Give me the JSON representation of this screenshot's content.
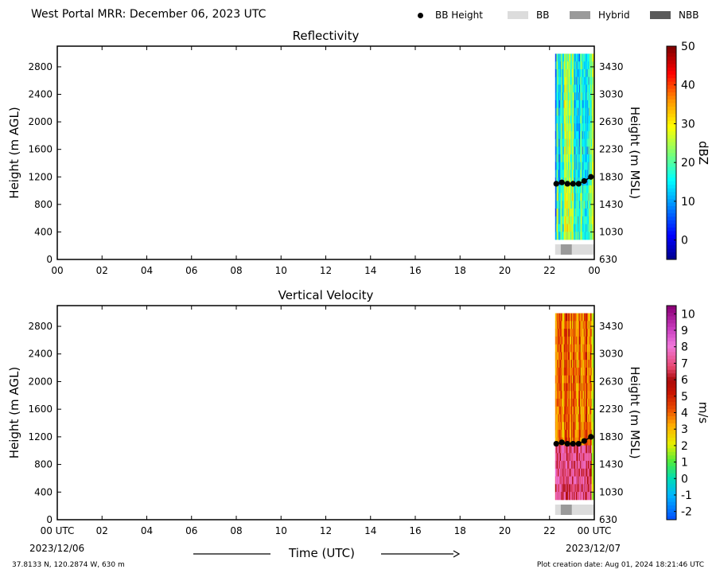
{
  "header": {
    "title": "West Portal MRR:  December 06, 2023 UTC",
    "legend": [
      {
        "label": "BB Height",
        "icon": "dot",
        "color": "#000000"
      },
      {
        "label": "BB",
        "icon": "swatch",
        "color": "#dcdcdc"
      },
      {
        "label": "Hybrid",
        "icon": "swatch",
        "color": "#9a9a9a"
      },
      {
        "label": "NBB",
        "icon": "swatch",
        "color": "#5a5a5a"
      }
    ]
  },
  "footer": {
    "coords": "37.8133 N, 120.2874 W, 630 m",
    "created": "Plot creation date: Aug 01, 2024 18:21:46 UTC",
    "time_label": "Time (UTC)",
    "date_start": "2023/12/06",
    "date_end": "2023/12/07"
  },
  "chart_data": [
    {
      "type": "heatmap",
      "title": "Reflectivity",
      "ylabel": "Height (m AGL)",
      "ylabel_right": "Height (m MSL)",
      "xticks": [
        "00",
        "02",
        "04",
        "06",
        "08",
        "10",
        "12",
        "14",
        "16",
        "18",
        "20",
        "22",
        "00"
      ],
      "yticks": [
        0,
        400,
        800,
        1200,
        1600,
        2000,
        2400,
        2800
      ],
      "yticks_right": [
        630,
        1030,
        1430,
        1830,
        2230,
        2630,
        3030,
        3430
      ],
      "xlim": [
        0,
        24
      ],
      "ylim": [
        0,
        3100
      ],
      "data_start_hour": 22.25,
      "data_end_hour": 24,
      "data_top_m": 2990,
      "data_bottom_m": 290,
      "bb_height": {
        "hours": [
          22.3,
          22.55,
          22.8,
          23.05,
          23.3,
          23.55,
          23.85
        ],
        "heights": [
          1100,
          1120,
          1100,
          1100,
          1100,
          1140,
          1200
        ]
      },
      "bb_class_strip": [
        {
          "from": 22.25,
          "to": 22.5,
          "class": "BB"
        },
        {
          "from": 22.5,
          "to": 23.0,
          "class": "Hybrid"
        },
        {
          "from": 23.0,
          "to": 24.0,
          "class": "BB"
        }
      ],
      "colorbar": {
        "label": "dBZ",
        "ticks": [
          0,
          10,
          20,
          30,
          40,
          50
        ],
        "min": -5,
        "max": 50
      }
    },
    {
      "type": "heatmap",
      "title": "Vertical Velocity",
      "ylabel": "Height (m AGL)",
      "ylabel_right": "Height (m MSL)",
      "xticks": [
        "00 UTC",
        "02",
        "04",
        "06",
        "08",
        "10",
        "12",
        "14",
        "16",
        "18",
        "20",
        "22",
        "00 UTC"
      ],
      "yticks": [
        0,
        400,
        800,
        1200,
        1600,
        2000,
        2400,
        2800
      ],
      "yticks_right": [
        630,
        1030,
        1430,
        1830,
        2230,
        2630,
        3030,
        3430
      ],
      "xlim": [
        0,
        24
      ],
      "ylim": [
        0,
        3100
      ],
      "data_start_hour": 22.25,
      "data_end_hour": 24,
      "data_top_m": 2990,
      "data_bottom_m": 290,
      "bb_height": {
        "hours": [
          22.3,
          22.55,
          22.8,
          23.05,
          23.3,
          23.55,
          23.85
        ],
        "heights": [
          1100,
          1120,
          1100,
          1100,
          1100,
          1140,
          1200
        ]
      },
      "bb_class_strip": [
        {
          "from": 22.25,
          "to": 22.5,
          "class": "BB"
        },
        {
          "from": 22.5,
          "to": 23.0,
          "class": "Hybrid"
        },
        {
          "from": 23.0,
          "to": 24.0,
          "class": "BB"
        }
      ],
      "colorbar": {
        "label": "m/s",
        "ticks": [
          10,
          9,
          8,
          7,
          6,
          5,
          4,
          3,
          2,
          1,
          0,
          -1,
          -2
        ],
        "min": -2.5,
        "max": 10.5
      }
    }
  ]
}
